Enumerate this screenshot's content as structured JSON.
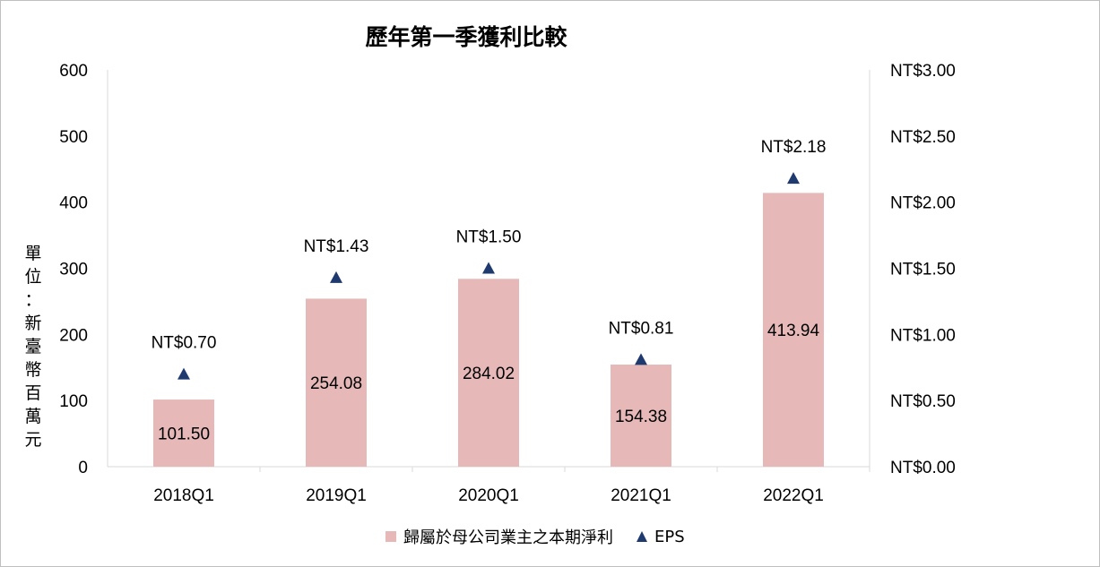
{
  "chart_data": {
    "type": "bar",
    "title": "歷年第一季獲利比較",
    "ylabel": "單位：新臺幣百萬元",
    "ylabel_chars": [
      "單",
      "位",
      "：",
      "新",
      "臺",
      "幣",
      "百",
      "萬",
      "元"
    ],
    "categories": [
      "2018Q1",
      "2019Q1",
      "2020Q1",
      "2021Q1",
      "2022Q1"
    ],
    "series": [
      {
        "name": "歸屬於母公司業主之本期淨利",
        "type": "bar",
        "axis": "left",
        "color": "#e6b9b8",
        "values": [
          101.5,
          254.08,
          284.02,
          154.38,
          413.94
        ],
        "labels": [
          "101.50",
          "254.08",
          "284.02",
          "154.38",
          "413.94"
        ]
      },
      {
        "name": "EPS",
        "type": "scatter",
        "marker": "triangle",
        "axis": "right",
        "color": "#1f3a6e",
        "values": [
          0.7,
          1.43,
          1.5,
          0.81,
          2.18
        ],
        "labels": [
          "NT$0.70",
          "NT$1.43",
          "NT$1.50",
          "NT$0.81",
          "NT$2.18"
        ]
      }
    ],
    "y_left": {
      "min": 0,
      "max": 600,
      "ticks": [
        "0",
        "100",
        "200",
        "300",
        "400",
        "500",
        "600"
      ]
    },
    "y_right": {
      "min": 0,
      "max": 3.0,
      "ticks": [
        "NT$0.00",
        "NT$0.50",
        "NT$1.00",
        "NT$1.50",
        "NT$2.00",
        "NT$2.50",
        "NT$3.00"
      ]
    },
    "grid": false,
    "legend_position": "bottom"
  }
}
